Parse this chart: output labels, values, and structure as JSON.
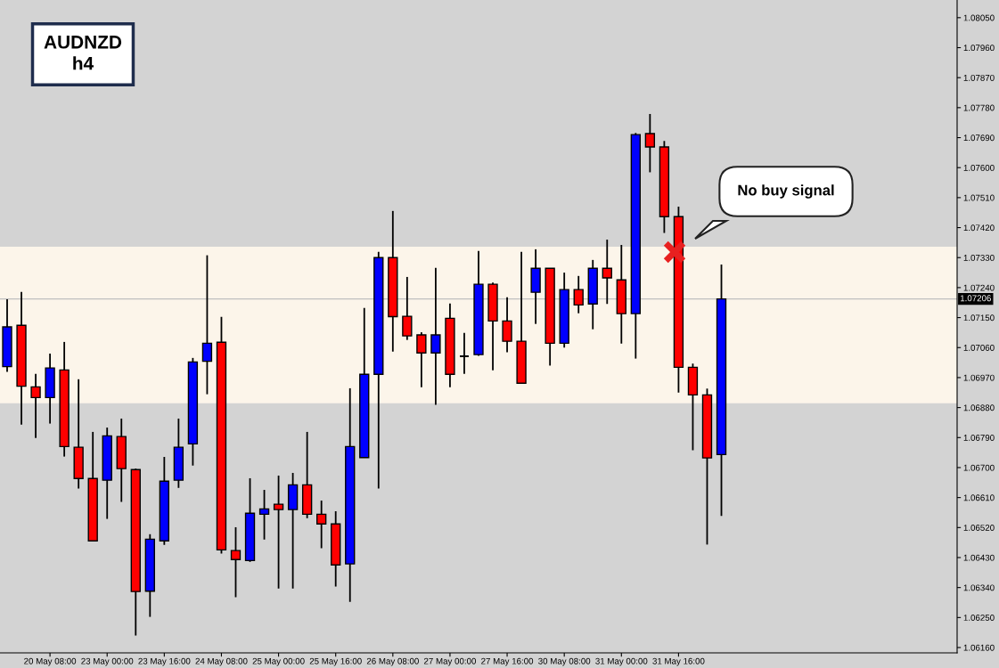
{
  "chart_data": {
    "type": "candlestick",
    "title": "AUDNZD\nh4",
    "categories": [
      null,
      null,
      null,
      "20 May 08:00",
      null,
      null,
      null,
      "23 May 00:00",
      null,
      null,
      null,
      "23 May 16:00",
      null,
      null,
      null,
      "24 May 08:00",
      null,
      null,
      null,
      "25 May 00:00",
      null,
      null,
      null,
      "25 May 16:00",
      null,
      null,
      null,
      "26 May 08:00",
      null,
      null,
      null,
      "27 May 00:00",
      null,
      null,
      null,
      "27 May 16:00",
      null,
      null,
      null,
      "30 May 08:00",
      null,
      null,
      null,
      "31 May 00:00",
      null,
      null,
      null,
      "31 May 16:00",
      null,
      null,
      null,
      null,
      null,
      null,
      null,
      null,
      null,
      null,
      null,
      null,
      null,
      null,
      null,
      null,
      null,
      null,
      null
    ],
    "ohlc": [
      [
        1.07003,
        1.07205,
        1.06987,
        1.07122
      ],
      [
        1.07127,
        1.07227,
        1.06829,
        1.06944
      ],
      [
        1.06942,
        1.06981,
        1.06789,
        1.0691
      ],
      [
        1.0691,
        1.07042,
        1.06832,
        1.06999
      ],
      [
        1.06993,
        1.07077,
        1.06733,
        1.06763
      ],
      [
        1.06761,
        1.06965,
        1.06637,
        1.06667
      ],
      [
        1.06667,
        1.06807,
        1.0648,
        1.0648
      ],
      [
        1.06662,
        1.0682,
        1.06546,
        1.06795
      ],
      [
        1.06793,
        1.06847,
        1.06597,
        1.06697
      ],
      [
        1.06694,
        1.06697,
        1.06196,
        1.06328
      ],
      [
        1.06329,
        1.065,
        1.06252,
        1.06485
      ],
      [
        1.0648,
        1.06732,
        1.06468,
        1.06659
      ],
      [
        1.06662,
        1.06847,
        1.06639,
        1.06761
      ],
      [
        1.06771,
        1.07029,
        1.06706,
        1.07017
      ],
      [
        1.07019,
        1.07337,
        1.0692,
        1.07073
      ],
      [
        1.07076,
        1.07152,
        1.06442,
        1.06453
      ],
      [
        1.06451,
        1.06521,
        1.06311,
        1.06424
      ],
      [
        1.06421,
        1.06668,
        1.06417,
        1.06563
      ],
      [
        1.0656,
        1.06633,
        1.06484,
        1.06576
      ],
      [
        1.0659,
        1.06676,
        1.06337,
        1.06574
      ],
      [
        1.06574,
        1.06684,
        1.06337,
        1.06648
      ],
      [
        1.06648,
        1.06807,
        1.06548,
        1.0656
      ],
      [
        1.0656,
        1.06601,
        1.06458,
        1.06531
      ],
      [
        1.06531,
        1.06569,
        1.06343,
        1.06408
      ],
      [
        1.06411,
        1.06938,
        1.06297,
        1.06763
      ],
      [
        1.0673,
        1.07179,
        1.0673,
        1.0698
      ],
      [
        1.0698,
        1.07347,
        1.06637,
        1.0733
      ],
      [
        1.0733,
        1.0747,
        1.07048,
        1.07153
      ],
      [
        1.07154,
        1.07272,
        1.07083,
        1.07095
      ],
      [
        1.07098,
        1.07106,
        1.06941,
        1.07044
      ],
      [
        1.07044,
        1.07299,
        1.06888,
        1.07098
      ],
      [
        1.07148,
        1.07192,
        1.06941,
        1.0698
      ],
      [
        1.07034,
        1.07104,
        1.06981,
        1.07034
      ],
      [
        1.07039,
        1.0735,
        1.07035,
        1.0725
      ],
      [
        1.0725,
        1.07255,
        1.06992,
        1.0714
      ],
      [
        1.0714,
        1.07211,
        1.07046,
        1.07079
      ],
      [
        1.07079,
        1.07347,
        1.06953,
        1.06953
      ],
      [
        1.07226,
        1.07355,
        1.07131,
        1.07298
      ],
      [
        1.07298,
        1.07298,
        1.07006,
        1.07073
      ],
      [
        1.07073,
        1.07285,
        1.0706,
        1.07234
      ],
      [
        1.07234,
        1.07275,
        1.07163,
        1.07188
      ],
      [
        1.07191,
        1.07323,
        1.07115,
        1.07298
      ],
      [
        1.07298,
        1.07384,
        1.07191,
        1.07269
      ],
      [
        1.07263,
        1.07368,
        1.07072,
        1.07162
      ],
      [
        1.07162,
        1.07704,
        1.07027,
        1.07699
      ],
      [
        1.07702,
        1.07761,
        1.07586,
        1.07662
      ],
      [
        1.07662,
        1.0768,
        1.07404,
        1.07453
      ],
      [
        1.07453,
        1.07483,
        1.06925,
        1.07001
      ],
      [
        1.07001,
        1.07012,
        1.06752,
        1.06918
      ],
      [
        1.06918,
        1.06937,
        1.06469,
        1.06729
      ],
      [
        1.06739,
        1.07309,
        1.06555,
        1.07206
      ],
      null,
      null,
      null,
      null,
      null,
      null,
      null,
      null,
      null,
      null,
      null,
      null,
      null,
      null,
      null,
      null
    ],
    "colors": [
      "#0000ff",
      "#ff0000",
      "#ff0000",
      "#0000ff",
      "#ff0000",
      "#ff0000",
      "#ff0000",
      "#0000ff",
      "#ff0000",
      "#ff0000",
      "#0000ff",
      "#0000ff",
      "#0000ff",
      "#0000ff",
      "#0000ff",
      "#ff0000",
      "#ff0000",
      "#0000ff",
      "#0000ff",
      "#ff0000",
      "#0000ff",
      "#ff0000",
      "#ff0000",
      "#ff0000",
      "#0000ff",
      "#0000ff",
      "#0000ff",
      "#ff0000",
      "#ff0000",
      "#ff0000",
      "#0000ff",
      "#ff0000",
      "#000000",
      "#0000ff",
      "#ff0000",
      "#ff0000",
      "#ff0000",
      "#0000ff",
      "#ff0000",
      "#0000ff",
      "#ff0000",
      "#0000ff",
      "#ff0000",
      "#ff0000",
      "#0000ff",
      "#ff0000",
      "#ff0000",
      "#ff0000",
      "#ff0000",
      "#ff0000",
      "#0000ff",
      null,
      null,
      null,
      null,
      null,
      null,
      null,
      null,
      null,
      null,
      null,
      null,
      null,
      null,
      null,
      null
    ],
    "ylim": [
      1.06144,
      1.08103
    ],
    "yticks": [
      {
        "value": 1.0616,
        "label": "1.06160"
      },
      {
        "value": 1.0625,
        "label": "1.06250"
      },
      {
        "value": 1.0634,
        "label": "1.06340"
      },
      {
        "value": 1.0643,
        "label": "1.06430"
      },
      {
        "value": 1.0652,
        "label": "1.06520"
      },
      {
        "value": 1.0661,
        "label": "1.06610"
      },
      {
        "value": 1.067,
        "label": "1.06700"
      },
      {
        "value": 1.0679,
        "label": "1.06790"
      },
      {
        "value": 1.0688,
        "label": "1.06880"
      },
      {
        "value": 1.0697,
        "label": "1.06970"
      },
      {
        "value": 1.0706,
        "label": "1.07060"
      },
      {
        "value": 1.0715,
        "label": "1.07150"
      },
      {
        "value": 1.0724,
        "label": "1.07240"
      },
      {
        "value": 1.0733,
        "label": "1.07330"
      },
      {
        "value": 1.0742,
        "label": "1.07420"
      },
      {
        "value": 1.0751,
        "label": "1.07510"
      },
      {
        "value": 1.076,
        "label": "1.07600"
      },
      {
        "value": 1.0769,
        "label": "1.07690"
      },
      {
        "value": 1.0778,
        "label": "1.07780"
      },
      {
        "value": 1.0787,
        "label": "1.07870"
      },
      {
        "value": 1.0796,
        "label": "1.07960"
      },
      {
        "value": 1.0805,
        "label": "1.08050"
      }
    ],
    "ref_lines": [
      {
        "axis": "y",
        "value": 1.07206,
        "label": "1.07206",
        "color": "#c0c0c0"
      }
    ],
    "bands": [
      {
        "axis": "y",
        "from": 1.06893,
        "to": 1.07363,
        "color": "#fcf5ea"
      }
    ],
    "annotations": [
      "No buy signal"
    ],
    "grid": false,
    "legend": false
  }
}
